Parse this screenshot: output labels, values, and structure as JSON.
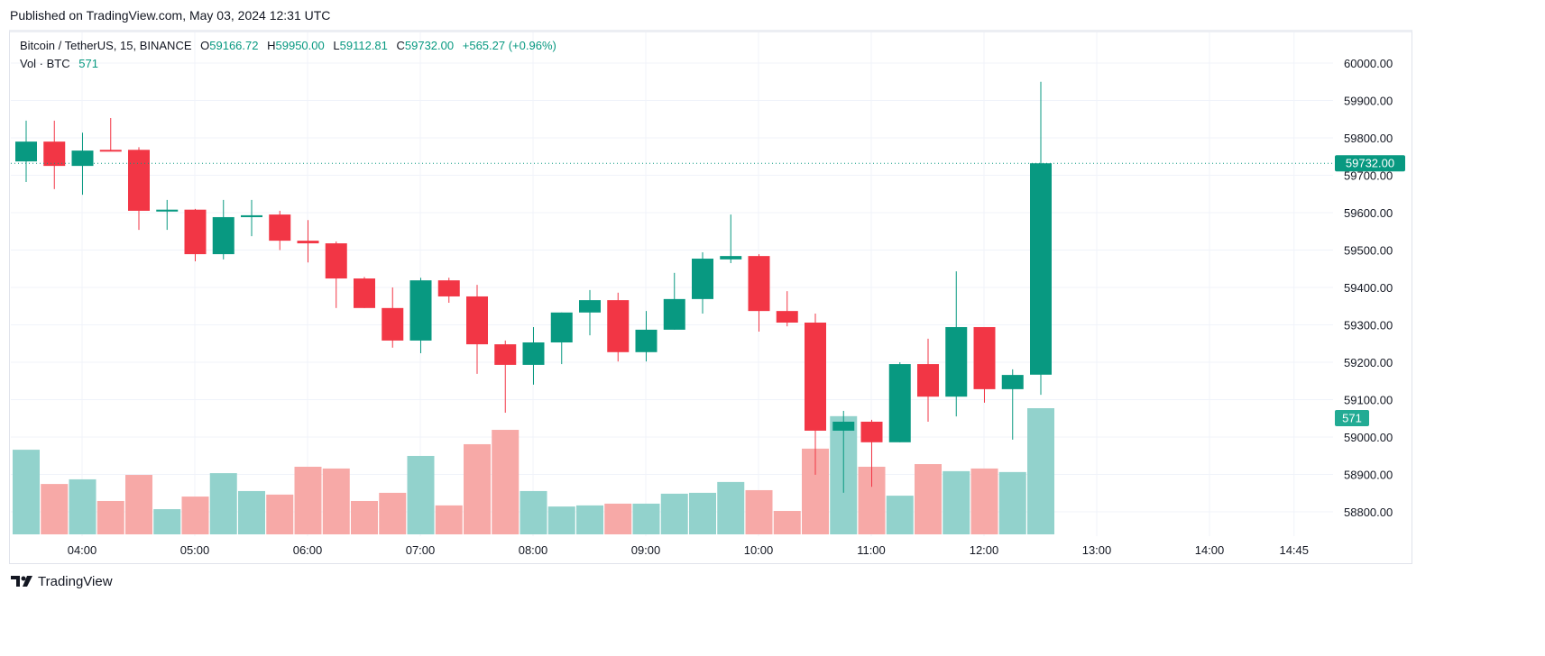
{
  "published": "Published on TradingView.com, May 03, 2024 12:31 UTC",
  "legend": {
    "symbol": "Bitcoin / TetherUS, 15, BINANCE",
    "open_label": "O",
    "open": "59166.72",
    "high_label": "H",
    "high": "59950.00",
    "low_label": "L",
    "low": "59112.81",
    "close_label": "C",
    "close": "59732.00",
    "change": "+565.27 (+0.96%)",
    "vol_label": "Vol · BTC",
    "vol": "571"
  },
  "logo": "TradingView",
  "colors": {
    "up": "#089981",
    "down": "#f23645",
    "vol_up": "#92d2cc",
    "vol_down": "#f7a9a7"
  },
  "chart_data": {
    "type": "candlestick",
    "title": "Bitcoin / TetherUS, 15, BINANCE",
    "ylim": [
      58740,
      60040
    ],
    "y_ticks": [
      "60000.00",
      "59900.00",
      "59800.00",
      "59700.00",
      "59600.00",
      "59500.00",
      "59400.00",
      "59300.00",
      "59200.00",
      "59100.00",
      "59000.00",
      "58900.00",
      "58800.00"
    ],
    "x_ticks": [
      "04:00",
      "05:00",
      "06:00",
      "07:00",
      "08:00",
      "09:00",
      "10:00",
      "11:00",
      "12:00",
      "13:00",
      "14:00",
      "14:45"
    ],
    "last_price_label": "59732.00",
    "last_volume_label": "571",
    "candles": [
      {
        "t": "03:30",
        "o": 59737,
        "h": 59846,
        "l": 59682,
        "c": 59790,
        "v": 383
      },
      {
        "t": "03:45",
        "o": 59790,
        "h": 59846,
        "l": 59663,
        "c": 59725,
        "v": 228
      },
      {
        "t": "04:00",
        "o": 59725,
        "h": 59814,
        "l": 59648,
        "c": 59766,
        "v": 249
      },
      {
        "t": "04:15",
        "o": 59768,
        "h": 59853,
        "l": 59766,
        "c": 59766,
        "v": 151
      },
      {
        "t": "04:30",
        "o": 59768,
        "h": 59775,
        "l": 59554,
        "c": 59605,
        "v": 269
      },
      {
        "t": "04:45",
        "o": 59603,
        "h": 59634,
        "l": 59554,
        "c": 59608,
        "v": 114
      },
      {
        "t": "05:00",
        "o": 59608,
        "h": 59610,
        "l": 59470,
        "c": 59489,
        "v": 171
      },
      {
        "t": "05:15",
        "o": 59489,
        "h": 59634,
        "l": 59475,
        "c": 59588,
        "v": 277
      },
      {
        "t": "05:30",
        "o": 59588,
        "h": 59634,
        "l": 59537,
        "c": 59593,
        "v": 196
      },
      {
        "t": "05:45",
        "o": 59595,
        "h": 59605,
        "l": 59500,
        "c": 59525,
        "v": 180
      },
      {
        "t": "06:00",
        "o": 59525,
        "h": 59580,
        "l": 59467,
        "c": 59518,
        "v": 306
      },
      {
        "t": "06:15",
        "o": 59518,
        "h": 59523,
        "l": 59345,
        "c": 59424,
        "v": 298
      },
      {
        "t": "06:30",
        "o": 59424,
        "h": 59428,
        "l": 59345,
        "c": 59345,
        "v": 151
      },
      {
        "t": "06:45",
        "o": 59345,
        "h": 59400,
        "l": 59239,
        "c": 59258,
        "v": 188
      },
      {
        "t": "07:00",
        "o": 59258,
        "h": 59426,
        "l": 59224,
        "c": 59419,
        "v": 355
      },
      {
        "t": "07:15",
        "o": 59419,
        "h": 59426,
        "l": 59359,
        "c": 59376,
        "v": 131
      },
      {
        "t": "07:30",
        "o": 59376,
        "h": 59407,
        "l": 59169,
        "c": 59248,
        "v": 408
      },
      {
        "t": "07:45",
        "o": 59248,
        "h": 59258,
        "l": 59065,
        "c": 59193,
        "v": 473
      },
      {
        "t": "08:00",
        "o": 59193,
        "h": 59294,
        "l": 59140,
        "c": 59253,
        "v": 196
      },
      {
        "t": "08:15",
        "o": 59253,
        "h": 59333,
        "l": 59195,
        "c": 59333,
        "v": 126
      },
      {
        "t": "08:30",
        "o": 59333,
        "h": 59393,
        "l": 59272,
        "c": 59366,
        "v": 131
      },
      {
        "t": "08:45",
        "o": 59366,
        "h": 59386,
        "l": 59202,
        "c": 59227,
        "v": 139
      },
      {
        "t": "09:00",
        "o": 59227,
        "h": 59337,
        "l": 59202,
        "c": 59287,
        "v": 139
      },
      {
        "t": "09:15",
        "o": 59287,
        "h": 59439,
        "l": 59287,
        "c": 59369,
        "v": 184
      },
      {
        "t": "09:30",
        "o": 59369,
        "h": 59494,
        "l": 59330,
        "c": 59477,
        "v": 188
      },
      {
        "t": "09:45",
        "o": 59475,
        "h": 59595,
        "l": 59465,
        "c": 59484,
        "v": 237
      },
      {
        "t": "10:00",
        "o": 59484,
        "h": 59489,
        "l": 59282,
        "c": 59337,
        "v": 200
      },
      {
        "t": "10:15",
        "o": 59337,
        "h": 59390,
        "l": 59296,
        "c": 59306,
        "v": 106
      },
      {
        "t": "10:30",
        "o": 59306,
        "h": 59330,
        "l": 58899,
        "c": 59017,
        "v": 388
      },
      {
        "t": "10:45",
        "o": 59017,
        "h": 59070,
        "l": 58851,
        "c": 59041,
        "v": 535
      },
      {
        "t": "11:00",
        "o": 59041,
        "h": 59046,
        "l": 58867,
        "c": 58986,
        "v": 306
      },
      {
        "t": "11:15",
        "o": 58986,
        "h": 59200,
        "l": 58986,
        "c": 59195,
        "v": 175
      },
      {
        "t": "11:30",
        "o": 59195,
        "h": 59263,
        "l": 59041,
        "c": 59108,
        "v": 318
      },
      {
        "t": "11:45",
        "o": 59108,
        "h": 59443,
        "l": 59055,
        "c": 59294,
        "v": 286
      },
      {
        "t": "12:00",
        "o": 59294,
        "h": 59294,
        "l": 59092,
        "c": 59128,
        "v": 298
      },
      {
        "t": "12:15",
        "o": 59128,
        "h": 59181,
        "l": 58993,
        "c": 59166,
        "v": 282
      },
      {
        "t": "12:30",
        "o": 59166.72,
        "h": 59950,
        "l": 59112.81,
        "c": 59732,
        "v": 571
      }
    ]
  }
}
